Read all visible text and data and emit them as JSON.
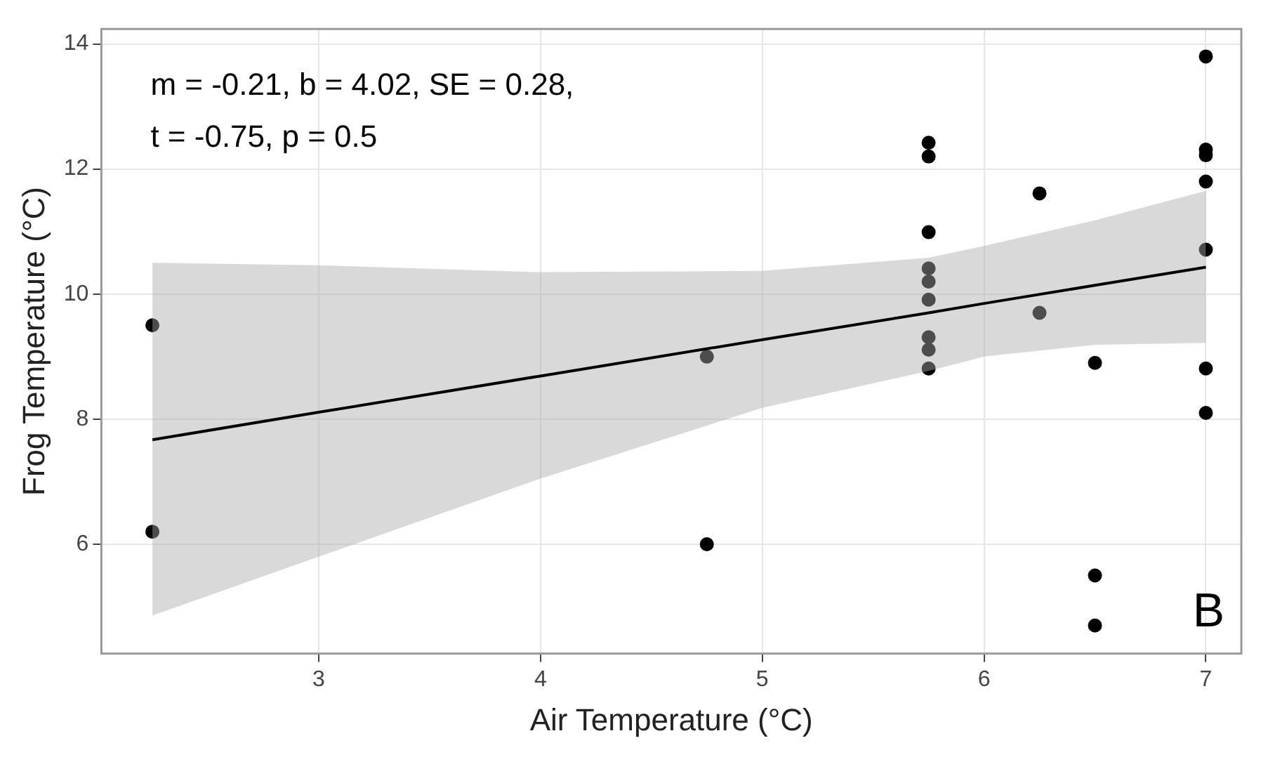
{
  "chart_data": {
    "type": "scatter",
    "xlabel": "Air Temperature (°C)",
    "ylabel": "Frog Temperature (°C)",
    "annotations": [
      "m = -0.21, b = 4.02, SE = 0.28,",
      "t = -0.75, p = 0.5",
      "B"
    ],
    "xlim": [
      2.02,
      7.16
    ],
    "ylim": [
      4.25,
      14.24
    ],
    "xticks": [
      3,
      4,
      5,
      6,
      7
    ],
    "yticks": [
      6,
      8,
      10,
      12,
      14
    ],
    "grid": true,
    "series": [
      {
        "color": "#000000",
        "marker": "circle",
        "x": [
          2.25,
          2.25,
          4.75,
          4.75,
          5.75,
          5.75,
          5.75,
          5.75,
          5.75,
          5.75,
          5.75,
          5.75,
          5.75,
          6.25,
          6.25,
          6.5,
          6.5,
          6.5,
          7,
          7,
          7,
          7,
          7,
          7,
          7
        ],
        "values": [
          9.5,
          6.2,
          9.0,
          6.0,
          12.42,
          12.2,
          10.99,
          10.41,
          10.2,
          9.91,
          9.31,
          9.11,
          8.81,
          11.61,
          9.7,
          8.9,
          5.5,
          4.7,
          13.8,
          12.31,
          12.22,
          11.8,
          10.71,
          8.81,
          8.1
        ]
      },
      {
        "type": "line",
        "color": "#000000",
        "line_style": "solid",
        "x": [
          2.25,
          3,
          4,
          5,
          5.75,
          6,
          6.5,
          7
        ],
        "values": [
          7.67,
          8.11,
          8.69,
          9.27,
          9.7,
          9.85,
          10.14,
          10.43
        ],
        "lower": [
          4.86,
          5.8,
          7.05,
          8.18,
          8.77,
          9.0,
          9.19,
          9.22
        ],
        "upper": [
          10.5,
          10.46,
          10.35,
          10.37,
          10.58,
          10.77,
          11.18,
          11.65
        ]
      }
    ]
  }
}
